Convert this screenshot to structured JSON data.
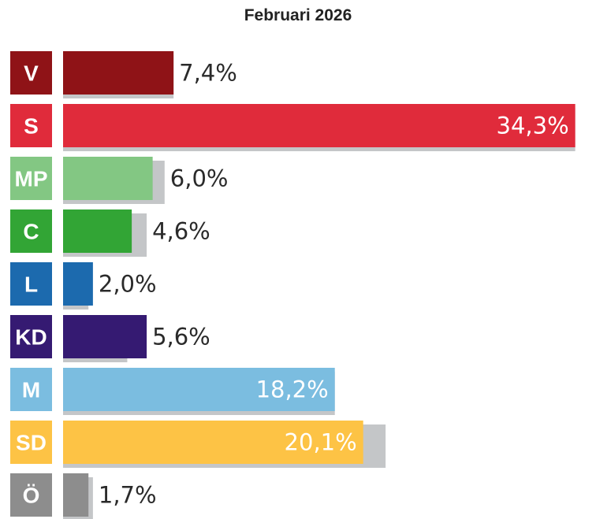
{
  "title": "Februari 2026",
  "chart_data": {
    "type": "bar",
    "orientation": "horizontal",
    "title": "Februari 2026",
    "categories": [
      "V",
      "S",
      "MP",
      "C",
      "L",
      "KD",
      "M",
      "SD",
      "Ö"
    ],
    "values": [
      7.4,
      34.3,
      6.0,
      4.6,
      2.0,
      5.6,
      18.2,
      20.1,
      1.7
    ],
    "previous_values": [
      7.4,
      34.3,
      6.8,
      5.6,
      1.7,
      4.3,
      18.2,
      21.6,
      2.0
    ],
    "value_labels": [
      "7,4%",
      "34,3%",
      "6,0%",
      "4,6%",
      "2,0%",
      "5,6%",
      "18,2%",
      "20,1%",
      "1,7%"
    ],
    "colors": [
      "#8f1317",
      "#e02b3b",
      "#83c783",
      "#32a535",
      "#1c6aae",
      "#351a72",
      "#7bbde0",
      "#fdc345",
      "#8d8d8d"
    ],
    "shadow_color": "#c4c6c8",
    "xlim": [
      0,
      35
    ],
    "grid": false,
    "legend": "none"
  }
}
